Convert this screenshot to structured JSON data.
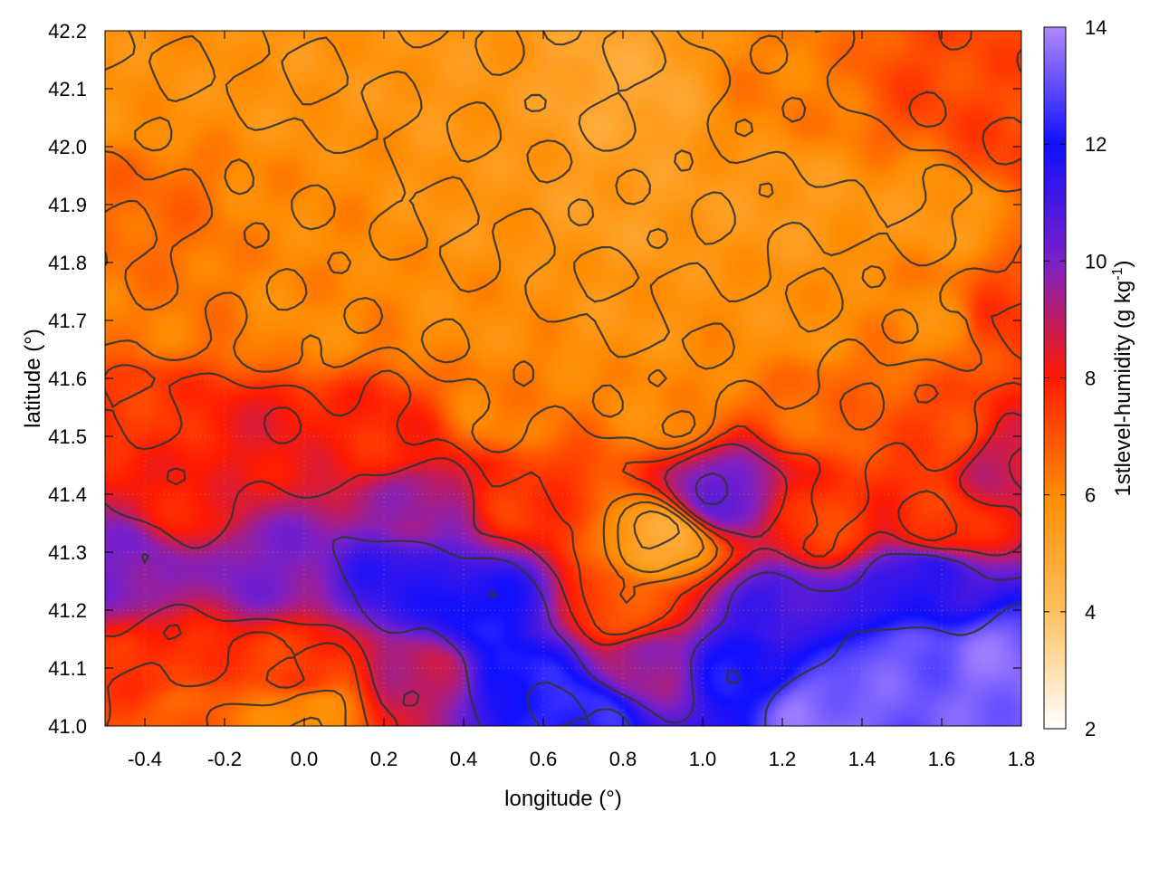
{
  "chart_data": {
    "type": "heatmap",
    "xlabel": "longitude (°)",
    "ylabel": "latitude (°)",
    "colorbar_label": "1stlevel-humidity (g kg",
    "colorbar_label_sup": "-1",
    "colorbar_label_end": ")",
    "xlim": [
      -0.5,
      1.8
    ],
    "ylim": [
      41.0,
      42.2
    ],
    "x_ticks": [
      -0.4,
      -0.2,
      0.0,
      0.2,
      0.4,
      0.6,
      0.8,
      1.0,
      1.2,
      1.4,
      1.6,
      1.8
    ],
    "x_tick_labels": [
      "-0.4",
      "-0.2",
      "0.0",
      "0.2",
      "0.4",
      "0.6",
      "0.8",
      "1.0",
      "1.2",
      "1.4",
      "1.6",
      "1.8"
    ],
    "y_ticks": [
      41.0,
      41.1,
      41.2,
      41.3,
      41.4,
      41.5,
      41.6,
      41.7,
      41.8,
      41.9,
      42.0,
      42.1,
      42.2
    ],
    "y_tick_labels": [
      "41.0",
      "41.1",
      "41.2",
      "41.3",
      "41.4",
      "41.5",
      "41.6",
      "41.7",
      "41.8",
      "41.9",
      "42.0",
      "42.1",
      "42.2"
    ],
    "colorbar_range": [
      2,
      14
    ],
    "colorbar_ticks": [
      2,
      4,
      6,
      8,
      10,
      12,
      14
    ],
    "colorbar_tick_labels": [
      "2",
      "4",
      "6",
      "8",
      "10",
      "12",
      "14"
    ],
    "colormap": [
      {
        "value": 2,
        "color": "#ffffff"
      },
      {
        "value": 4,
        "color": "#ffc060"
      },
      {
        "value": 6,
        "color": "#ff8c00"
      },
      {
        "value": 8,
        "color": "#ff1a00"
      },
      {
        "value": 10,
        "color": "#7a20c8"
      },
      {
        "value": 12,
        "color": "#1010ff"
      },
      {
        "value": 14,
        "color": "#b088ff"
      }
    ],
    "grid": true,
    "contours": true,
    "field_anchors": [
      {
        "lon": -0.4,
        "lat": 42.1,
        "value": 5.8
      },
      {
        "lon": 0.0,
        "lat": 42.1,
        "value": 5.7
      },
      {
        "lon": 0.4,
        "lat": 42.1,
        "value": 5.6
      },
      {
        "lon": 0.8,
        "lat": 42.1,
        "value": 5.0
      },
      {
        "lon": 1.2,
        "lat": 42.1,
        "value": 6.2
      },
      {
        "lon": 1.6,
        "lat": 42.1,
        "value": 7.2
      },
      {
        "lon": 1.75,
        "lat": 42.0,
        "value": 7.3
      },
      {
        "lon": -0.4,
        "lat": 41.9,
        "value": 6.6
      },
      {
        "lon": 0.0,
        "lat": 41.9,
        "value": 6.0
      },
      {
        "lon": 0.4,
        "lat": 41.9,
        "value": 5.7
      },
      {
        "lon": 0.8,
        "lat": 41.9,
        "value": 5.4
      },
      {
        "lon": 1.2,
        "lat": 41.9,
        "value": 5.5
      },
      {
        "lon": 1.6,
        "lat": 41.9,
        "value": 5.6
      },
      {
        "lon": -0.4,
        "lat": 41.7,
        "value": 6.3
      },
      {
        "lon": 0.0,
        "lat": 41.7,
        "value": 6.0
      },
      {
        "lon": 0.4,
        "lat": 41.7,
        "value": 5.9
      },
      {
        "lon": 0.8,
        "lat": 41.7,
        "value": 5.7
      },
      {
        "lon": 1.2,
        "lat": 41.7,
        "value": 5.8
      },
      {
        "lon": 1.6,
        "lat": 41.7,
        "value": 6.0
      },
      {
        "lon": 1.75,
        "lat": 41.7,
        "value": 7.5
      },
      {
        "lon": -0.4,
        "lat": 41.55,
        "value": 7.5
      },
      {
        "lon": -0.1,
        "lat": 41.5,
        "value": 8.2
      },
      {
        "lon": 0.2,
        "lat": 41.5,
        "value": 7.8
      },
      {
        "lon": 0.5,
        "lat": 41.55,
        "value": 6.2
      },
      {
        "lon": 0.9,
        "lat": 41.55,
        "value": 6.0
      },
      {
        "lon": 1.3,
        "lat": 41.55,
        "value": 6.6
      },
      {
        "lon": 1.6,
        "lat": 41.5,
        "value": 7.2
      },
      {
        "lon": 1.75,
        "lat": 41.45,
        "value": 8.8
      },
      {
        "lon": -0.3,
        "lat": 41.38,
        "value": 8.0
      },
      {
        "lon": 0.3,
        "lat": 41.38,
        "value": 9.5
      },
      {
        "lon": 0.55,
        "lat": 41.4,
        "value": 7.5
      },
      {
        "lon": 0.9,
        "lat": 41.32,
        "value": 5.0
      },
      {
        "lon": 1.05,
        "lat": 41.4,
        "value": 10.2
      },
      {
        "lon": 1.3,
        "lat": 41.35,
        "value": 7.4
      },
      {
        "lon": 1.6,
        "lat": 41.35,
        "value": 7.5
      },
      {
        "lon": -0.45,
        "lat": 41.28,
        "value": 10.0
      },
      {
        "lon": -0.1,
        "lat": 41.28,
        "value": 10.0
      },
      {
        "lon": 0.25,
        "lat": 41.25,
        "value": 11.5
      },
      {
        "lon": 0.45,
        "lat": 41.2,
        "value": 12.0
      },
      {
        "lon": 0.8,
        "lat": 41.2,
        "value": 7.0
      },
      {
        "lon": 1.2,
        "lat": 41.2,
        "value": 11.0
      },
      {
        "lon": 1.55,
        "lat": 41.25,
        "value": 11.5
      },
      {
        "lon": -0.35,
        "lat": 41.1,
        "value": 7.6
      },
      {
        "lon": 0.0,
        "lat": 41.1,
        "value": 7.5
      },
      {
        "lon": 0.3,
        "lat": 41.08,
        "value": 9.0
      },
      {
        "lon": 0.55,
        "lat": 41.08,
        "value": 12.2
      },
      {
        "lon": 0.85,
        "lat": 41.1,
        "value": 9.5
      },
      {
        "lon": 1.1,
        "lat": 41.1,
        "value": 12.0
      },
      {
        "lon": 1.5,
        "lat": 41.1,
        "value": 13.2
      },
      {
        "lon": 1.75,
        "lat": 41.1,
        "value": 13.5
      },
      {
        "lon": -0.3,
        "lat": 41.02,
        "value": 6.8
      },
      {
        "lon": 0.0,
        "lat": 41.02,
        "value": 5.8
      },
      {
        "lon": 0.7,
        "lat": 41.02,
        "value": 12.5
      },
      {
        "lon": 1.3,
        "lat": 41.02,
        "value": 13.5
      }
    ]
  }
}
